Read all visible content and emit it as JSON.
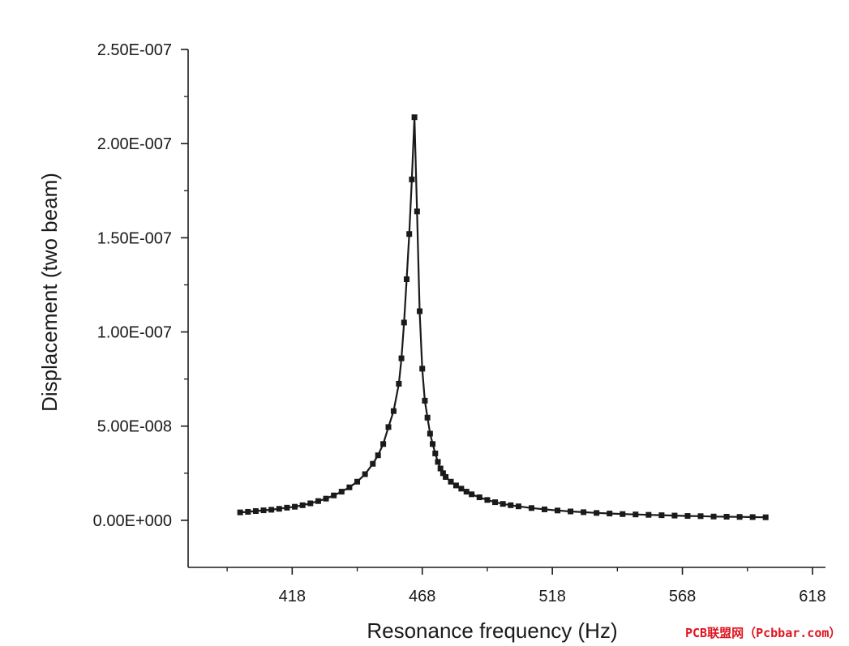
{
  "chart_data": {
    "type": "line",
    "title": "",
    "xlabel": "Resonance frequency (Hz)",
    "ylabel": "Displacement (two beam)",
    "xlim": [
      378,
      623
    ],
    "ylim": [
      -2.5e-08,
      2.5e-07
    ],
    "x_ticks": [
      418,
      468,
      518,
      568,
      618
    ],
    "x_tick_labels": [
      "418",
      "468",
      "518",
      "568",
      "618"
    ],
    "y_ticks": [
      0,
      5e-08,
      1e-07,
      1.5e-07,
      2e-07,
      2.5e-07
    ],
    "y_tick_labels": [
      "0.00E+000",
      "5.00E-008",
      "1.00E-007",
      "1.50E-007",
      "2.00E-007",
      "2.50E-007"
    ],
    "grid": false,
    "marker": "square",
    "color": "#1a1a1a",
    "series": [
      {
        "x": [
          398,
          401,
          404,
          407,
          410,
          413,
          416,
          419,
          422,
          425,
          428,
          431,
          434,
          437,
          440,
          443,
          446,
          449,
          451,
          453,
          455,
          457,
          459,
          460,
          461,
          462,
          463,
          464,
          465,
          466,
          467,
          468,
          469,
          470,
          471,
          472,
          473,
          474,
          475,
          476,
          477,
          479,
          481,
          483,
          485,
          487,
          490,
          493,
          496,
          499,
          502,
          505,
          510,
          515,
          520,
          525,
          530,
          535,
          540,
          545,
          550,
          555,
          560,
          565,
          570,
          575,
          580,
          585,
          590,
          595,
          600
        ],
        "values": [
          4.2e-09,
          4.5e-09,
          4.9e-09,
          5.3e-09,
          5.6e-09,
          6.1e-09,
          6.7e-09,
          7.2e-09,
          8e-09,
          9e-09,
          1.02e-08,
          1.15e-08,
          1.32e-08,
          1.52e-08,
          1.75e-08,
          2.05e-08,
          2.45e-08,
          3e-08,
          3.45e-08,
          4.05e-08,
          4.95e-08,
          5.8e-08,
          7.25e-08,
          8.6e-08,
          1.05e-07,
          1.28e-07,
          1.52e-07,
          1.81e-07,
          2.14e-07,
          1.64e-07,
          1.11e-07,
          8.05e-08,
          6.35e-08,
          5.45e-08,
          4.6e-08,
          4.05e-08,
          3.55e-08,
          3.1e-08,
          2.75e-08,
          2.5e-08,
          2.3e-08,
          2.05e-08,
          1.85e-08,
          1.68e-08,
          1.52e-08,
          1.38e-08,
          1.22e-08,
          1.08e-08,
          9.6e-09,
          8.7e-09,
          8e-09,
          7.4e-09,
          6.5e-09,
          5.8e-09,
          5.2e-09,
          4.7e-09,
          4.3e-09,
          3.9e-09,
          3.6e-09,
          3.3e-09,
          3.1e-09,
          2.9e-09,
          2.7e-09,
          2.5e-09,
          2.3e-09,
          2.2e-09,
          2e-09,
          1.9e-09,
          1.8e-09,
          1.7e-09,
          1.6e-09
        ]
      }
    ]
  },
  "watermark": {
    "text": "PCB联盟网（Pcbbar.com）",
    "color": "#e0141e"
  }
}
